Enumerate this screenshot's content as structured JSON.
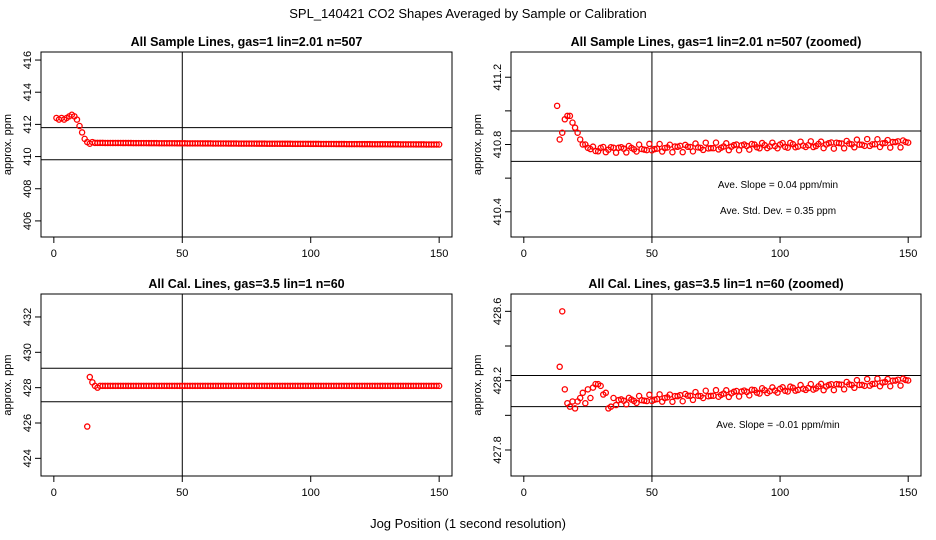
{
  "page_title": "SPL_140421  CO2 Shapes Averaged by Sample or Calibration",
  "x_label": "Jog Position (1 second resolution)",
  "chart_data": [
    {
      "type": "scatter",
      "title": "All Sample Lines, gas=1 lin=2.01 n=507",
      "ylabel": "approx. ppm",
      "xlim": [
        -5,
        155
      ],
      "ylim": [
        405,
        416.5
      ],
      "xticks": [
        0,
        50,
        100,
        150
      ],
      "yticks": [
        406,
        408,
        410,
        412,
        414,
        416
      ],
      "hlines": [
        409.8,
        411.8
      ],
      "vline": 50,
      "annotations": [],
      "series": [
        {
          "color": "#ff0000",
          "segments": [
            [
              [
                1,
                412.4
              ],
              [
                2,
                412.3
              ],
              [
                3,
                412.4
              ],
              [
                4,
                412.3
              ],
              [
                5,
                412.4
              ],
              [
                6,
                412.5
              ],
              [
                7,
                412.6
              ],
              [
                8,
                412.5
              ],
              [
                9,
                412.3
              ],
              [
                10,
                411.9
              ],
              [
                11,
                411.5
              ],
              [
                12,
                411.1
              ],
              [
                13,
                410.9
              ],
              [
                14,
                410.8
              ],
              [
                15,
                410.9
              ]
            ],
            [
              16,
              150,
              410.85,
              410.75
            ]
          ]
        }
      ]
    },
    {
      "type": "scatter",
      "title": "All Sample Lines, gas=1 lin=2.01 n=507 (zoomed)",
      "ylabel": "approx. ppm",
      "xlim": [
        -5,
        155
      ],
      "ylim": [
        410.25,
        411.35
      ],
      "xticks": [
        0,
        50,
        100,
        150
      ],
      "yticks": [
        410.4,
        410.8,
        411.2
      ],
      "minor_yticks": [
        410.6,
        411.0
      ],
      "hlines": [
        410.7,
        410.88
      ],
      "vline": 50,
      "annotations": [
        "Ave. Slope =  0.04  ppm/min",
        "Ave. Std. Dev. =  0.35  ppm"
      ],
      "series": [
        {
          "color": "#ff0000",
          "segments": [
            [
              [
                13,
                411.03
              ],
              [
                14,
                410.83
              ],
              [
                15,
                410.87
              ],
              [
                16,
                410.95
              ],
              [
                17,
                410.97
              ],
              [
                18,
                410.97
              ],
              [
                19,
                410.93
              ],
              [
                20,
                410.9
              ],
              [
                21,
                410.87
              ],
              [
                22,
                410.83
              ],
              [
                23,
                410.8
              ],
              [
                24,
                410.8
              ],
              [
                25,
                410.78
              ]
            ],
            [
              26,
              150,
              410.77,
              410.81
            ]
          ]
        }
      ]
    },
    {
      "type": "scatter",
      "title": "All Cal. Lines, gas=3.5 lin=1 n=60",
      "ylabel": "approx. ppm",
      "xlim": [
        -5,
        155
      ],
      "ylim": [
        423,
        433.3
      ],
      "xticks": [
        0,
        50,
        100,
        150
      ],
      "yticks": [
        424,
        426,
        428,
        430,
        432
      ],
      "hlines": [
        427.2,
        429.1
      ],
      "vline": 50,
      "annotations": [],
      "series": [
        {
          "color": "#ff0000",
          "segments": [
            [
              [
                13,
                425.8
              ],
              [
                14,
                428.6
              ],
              [
                15,
                428.3
              ],
              [
                16,
                428.1
              ],
              [
                17,
                428.0
              ],
              [
                18,
                428.1
              ]
            ],
            [
              19,
              150,
              428.1,
              428.1
            ]
          ]
        }
      ]
    },
    {
      "type": "scatter",
      "title": "All Cal. Lines, gas=3.5 lin=1 n=60 (zoomed)",
      "ylabel": "approx. ppm",
      "xlim": [
        -5,
        155
      ],
      "ylim": [
        427.65,
        428.7
      ],
      "xticks": [
        0,
        50,
        100,
        150
      ],
      "yticks": [
        427.8,
        428.2,
        428.6
      ],
      "minor_yticks": [
        428.0,
        428.4
      ],
      "hlines": [
        428.05,
        428.23
      ],
      "vline": 50,
      "annotations": [
        "Ave. Slope =  -0.01  ppm/min"
      ],
      "series": [
        {
          "color": "#ff0000",
          "segments": [
            [
              [
                14,
                428.28
              ],
              [
                15,
                428.6
              ],
              [
                16,
                428.15
              ],
              [
                17,
                428.07
              ],
              [
                18,
                428.05
              ],
              [
                19,
                428.08
              ],
              [
                20,
                428.04
              ],
              [
                21,
                428.08
              ],
              [
                22,
                428.1
              ],
              [
                23,
                428.13
              ],
              [
                24,
                428.07
              ],
              [
                25,
                428.15
              ],
              [
                26,
                428.1
              ],
              [
                27,
                428.16
              ],
              [
                28,
                428.18
              ],
              [
                29,
                428.18
              ],
              [
                30,
                428.17
              ],
              [
                31,
                428.12
              ],
              [
                32,
                428.13
              ],
              [
                33,
                428.04
              ],
              [
                34,
                428.05
              ],
              [
                35,
                428.1
              ]
            ],
            [
              36,
              150,
              428.08,
              428.2
            ]
          ]
        }
      ]
    }
  ]
}
